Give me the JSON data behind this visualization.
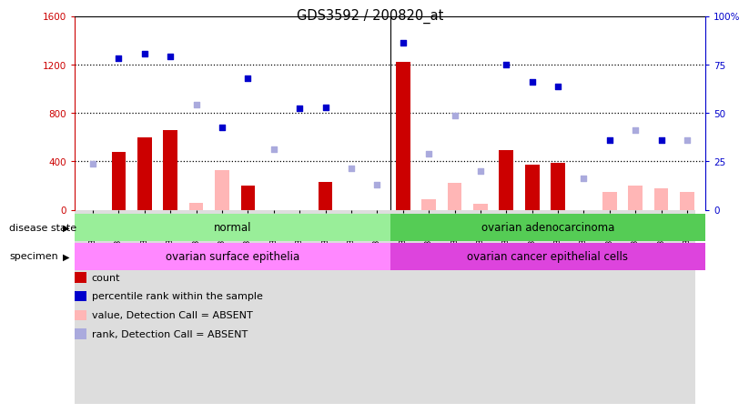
{
  "title": "GDS3592 / 200820_at",
  "samples": [
    "GSM359972",
    "GSM359973",
    "GSM359974",
    "GSM359975",
    "GSM359976",
    "GSM359977",
    "GSM359978",
    "GSM359979",
    "GSM359980",
    "GSM359981",
    "GSM359982",
    "GSM359983",
    "GSM359984",
    "GSM360039",
    "GSM360040",
    "GSM360041",
    "GSM360042",
    "GSM360043",
    "GSM360044",
    "GSM360045",
    "GSM360046",
    "GSM360047",
    "GSM360048",
    "GSM360049"
  ],
  "count_present": [
    0,
    480,
    600,
    660,
    0,
    0,
    200,
    0,
    0,
    230,
    0,
    0,
    1220,
    0,
    0,
    0,
    490,
    370,
    390,
    0,
    0,
    0,
    0,
    0
  ],
  "count_absent_vals": [
    0,
    0,
    0,
    0,
    60,
    330,
    0,
    0,
    0,
    0,
    0,
    0,
    0,
    90,
    220,
    50,
    0,
    0,
    0,
    0,
    150,
    200,
    175,
    150
  ],
  "rank_present_vals": [
    0,
    1250,
    1290,
    1270,
    0,
    680,
    1090,
    0,
    840,
    850,
    0,
    0,
    1380,
    0,
    0,
    0,
    1200,
    1060,
    1020,
    0,
    580,
    0,
    575,
    0
  ],
  "rank_absent_vals": [
    380,
    0,
    0,
    0,
    870,
    0,
    0,
    500,
    0,
    0,
    340,
    210,
    0,
    460,
    780,
    320,
    0,
    0,
    0,
    260,
    0,
    660,
    0,
    580
  ],
  "ylim_left": [
    0,
    1600
  ],
  "ylim_right": [
    0,
    100
  ],
  "yticks_left": [
    0,
    400,
    800,
    1200,
    1600
  ],
  "yticks_right": [
    0,
    25,
    50,
    75,
    100
  ],
  "bar_color_present": "#CC0000",
  "bar_color_absent": "#FFB6B6",
  "dot_color_present": "#0000CC",
  "dot_color_absent": "#AAAADD",
  "left_axis_color": "#CC0000",
  "right_axis_color": "#0000CC",
  "grid_dotted_at": [
    400,
    800,
    1200
  ],
  "disease_normal_color": "#99EE99",
  "disease_cancer_color": "#55CC55",
  "specimen_normal_color": "#FF88FF",
  "specimen_cancer_color": "#DD44DD",
  "split_idx": 12,
  "n_samples": 24,
  "legend_items": [
    {
      "label": "count",
      "color": "#CC0000"
    },
    {
      "label": "percentile rank within the sample",
      "color": "#0000CC"
    },
    {
      "label": "value, Detection Call = ABSENT",
      "color": "#FFB6B6"
    },
    {
      "label": "rank, Detection Call = ABSENT",
      "color": "#AAAADD"
    }
  ]
}
